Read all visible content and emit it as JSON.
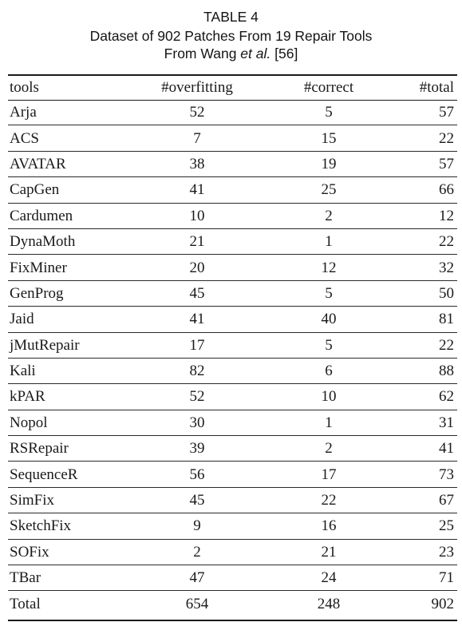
{
  "caption": {
    "label": "TABLE 4",
    "line2": "Dataset of 902 Patches From 19 Repair Tools",
    "line3_prefix": "From Wang ",
    "line3_italic": "et al.",
    "line3_suffix": " [56]"
  },
  "table": {
    "headers": [
      "tools",
      "#overfitting",
      "#correct",
      "#total"
    ],
    "rows": [
      [
        "Arja",
        "52",
        "5",
        "57"
      ],
      [
        "ACS",
        "7",
        "15",
        "22"
      ],
      [
        "AVATAR",
        "38",
        "19",
        "57"
      ],
      [
        "CapGen",
        "41",
        "25",
        "66"
      ],
      [
        "Cardumen",
        "10",
        "2",
        "12"
      ],
      [
        "DynaMoth",
        "21",
        "1",
        "22"
      ],
      [
        "FixMiner",
        "20",
        "12",
        "32"
      ],
      [
        "GenProg",
        "45",
        "5",
        "50"
      ],
      [
        "Jaid",
        "41",
        "40",
        "81"
      ],
      [
        "jMutRepair",
        "17",
        "5",
        "22"
      ],
      [
        "Kali",
        "82",
        "6",
        "88"
      ],
      [
        "kPAR",
        "52",
        "10",
        "62"
      ],
      [
        "Nopol",
        "30",
        "1",
        "31"
      ],
      [
        "RSRepair",
        "39",
        "2",
        "41"
      ],
      [
        "SequenceR",
        "56",
        "17",
        "73"
      ],
      [
        "SimFix",
        "45",
        "22",
        "67"
      ],
      [
        "SketchFix",
        "9",
        "16",
        "25"
      ],
      [
        "SOFix",
        "2",
        "21",
        "23"
      ],
      [
        "TBar",
        "47",
        "24",
        "71"
      ]
    ],
    "total": [
      "Total",
      "654",
      "248",
      "902"
    ]
  }
}
